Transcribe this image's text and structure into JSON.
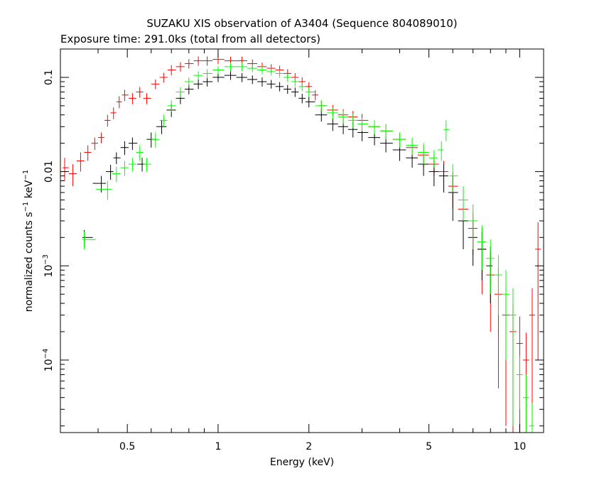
{
  "chart_data": {
    "type": "scatter",
    "title": "SUZAKU XIS observation of A3404 (Sequence 804089010)",
    "subtitle": "Exposure time: 291.0ks (total from all detectors)",
    "xlabel": "Energy (keV)",
    "ylabel_prefix": "normalized counts s",
    "ylabel_exp": "−1",
    "ylabel_mid": " keV",
    "ylabel_exp2": "−1",
    "x_scale": "log",
    "y_scale": "log",
    "xlim": [
      0.3,
      12
    ],
    "ylim": [
      1.7e-05,
      0.2
    ],
    "grid": false,
    "legend": "none",
    "x_ticks": [
      {
        "value": 0.5,
        "label": "0.5"
      },
      {
        "value": 1,
        "label": "1"
      },
      {
        "value": 2,
        "label": "2"
      },
      {
        "value": 5,
        "label": "5"
      },
      {
        "value": 10,
        "label": "10"
      }
    ],
    "y_ticks": [
      {
        "value": 0.1,
        "label": "0.1"
      },
      {
        "value": 0.01,
        "label": "0.01"
      },
      {
        "value": 0.001,
        "label": "10",
        "exp": "−3"
      },
      {
        "value": 0.0001,
        "label": "10",
        "exp": "−4"
      }
    ],
    "series": [
      {
        "color": "#ff0000",
        "points": [
          [
            0.31,
            0.011,
            0.003
          ],
          [
            0.33,
            0.0095,
            0.0025
          ],
          [
            0.35,
            0.013,
            0.003
          ],
          [
            0.37,
            0.016,
            0.003
          ],
          [
            0.39,
            0.02,
            0.003
          ],
          [
            0.41,
            0.023,
            0.003
          ],
          [
            0.43,
            0.035,
            0.005
          ],
          [
            0.45,
            0.042,
            0.006
          ],
          [
            0.47,
            0.055,
            0.008
          ],
          [
            0.49,
            0.065,
            0.009
          ],
          [
            0.52,
            0.06,
            0.008
          ],
          [
            0.55,
            0.07,
            0.009
          ],
          [
            0.58,
            0.06,
            0.008
          ],
          [
            0.62,
            0.085,
            0.01
          ],
          [
            0.66,
            0.1,
            0.012
          ],
          [
            0.7,
            0.12,
            0.015
          ],
          [
            0.75,
            0.13,
            0.015
          ],
          [
            0.8,
            0.14,
            0.016
          ],
          [
            0.86,
            0.15,
            0.017
          ],
          [
            0.92,
            0.15,
            0.017
          ],
          [
            1.0,
            0.155,
            0.017
          ],
          [
            1.1,
            0.15,
            0.016
          ],
          [
            1.2,
            0.15,
            0.016
          ],
          [
            1.3,
            0.14,
            0.015
          ],
          [
            1.4,
            0.13,
            0.014
          ],
          [
            1.5,
            0.125,
            0.013
          ],
          [
            1.6,
            0.12,
            0.013
          ],
          [
            1.7,
            0.11,
            0.012
          ],
          [
            1.8,
            0.1,
            0.011
          ],
          [
            1.9,
            0.09,
            0.01
          ],
          [
            2.0,
            0.08,
            0.009
          ],
          [
            2.1,
            0.065,
            0.008
          ],
          [
            2.2,
            0.05,
            0.007
          ],
          [
            2.4,
            0.045,
            0.006
          ],
          [
            2.6,
            0.04,
            0.006
          ],
          [
            2.8,
            0.038,
            0.006
          ],
          [
            3.0,
            0.035,
            0.006
          ],
          [
            3.3,
            0.03,
            0.005
          ],
          [
            3.6,
            0.027,
            0.005
          ],
          [
            4.0,
            0.022,
            0.004
          ],
          [
            4.4,
            0.018,
            0.004
          ],
          [
            4.8,
            0.015,
            0.004
          ],
          [
            5.2,
            0.012,
            0.003
          ],
          [
            5.6,
            0.01,
            0.003
          ],
          [
            6.0,
            0.007,
            0.003
          ],
          [
            6.5,
            0.004,
            0.002
          ],
          [
            7.0,
            0.0025,
            0.0012
          ],
          [
            7.5,
            0.0015,
            0.001
          ],
          [
            8.0,
            0.0008,
            0.0006
          ],
          [
            8.5,
            0.0005,
            0.00045
          ],
          [
            9.0,
            0.0003,
            0.00028
          ],
          [
            9.5,
            0.0002,
            0.00019
          ],
          [
            10.0,
            0.00015,
            0.00014
          ],
          [
            10.5,
            0.0001,
            9.5e-05
          ],
          [
            11.0,
            0.0003,
            0.00028
          ],
          [
            11.5,
            0.0015,
            0.0014
          ],
          [
            12.0,
            0.004,
            0.0035
          ]
        ]
      },
      {
        "color": "#000000",
        "points": [
          [
            0.36,
            0.002,
            0.0004
          ],
          [
            0.41,
            0.0075,
            0.0015
          ],
          [
            0.44,
            0.01,
            0.0018
          ],
          [
            0.46,
            0.014,
            0.002
          ],
          [
            0.49,
            0.018,
            0.003
          ],
          [
            0.52,
            0.02,
            0.003
          ],
          [
            0.56,
            0.012,
            0.002
          ],
          [
            0.6,
            0.022,
            0.004
          ],
          [
            0.65,
            0.03,
            0.005
          ],
          [
            0.7,
            0.045,
            0.007
          ],
          [
            0.75,
            0.06,
            0.008
          ],
          [
            0.8,
            0.075,
            0.009
          ],
          [
            0.86,
            0.085,
            0.01
          ],
          [
            0.92,
            0.09,
            0.01
          ],
          [
            1.0,
            0.1,
            0.011
          ],
          [
            1.1,
            0.105,
            0.011
          ],
          [
            1.2,
            0.1,
            0.011
          ],
          [
            1.3,
            0.095,
            0.01
          ],
          [
            1.4,
            0.09,
            0.01
          ],
          [
            1.5,
            0.085,
            0.009
          ],
          [
            1.6,
            0.08,
            0.009
          ],
          [
            1.7,
            0.075,
            0.008
          ],
          [
            1.8,
            0.07,
            0.008
          ],
          [
            1.9,
            0.06,
            0.007
          ],
          [
            2.0,
            0.055,
            0.007
          ],
          [
            2.2,
            0.04,
            0.006
          ],
          [
            2.4,
            0.032,
            0.005
          ],
          [
            2.6,
            0.03,
            0.005
          ],
          [
            2.8,
            0.028,
            0.005
          ],
          [
            3.0,
            0.026,
            0.005
          ],
          [
            3.3,
            0.023,
            0.004
          ],
          [
            3.6,
            0.02,
            0.004
          ],
          [
            4.0,
            0.017,
            0.004
          ],
          [
            4.4,
            0.014,
            0.003
          ],
          [
            4.8,
            0.012,
            0.003
          ],
          [
            5.2,
            0.01,
            0.003
          ],
          [
            5.6,
            0.009,
            0.003
          ],
          [
            6.0,
            0.006,
            0.003
          ],
          [
            6.5,
            0.003,
            0.0015
          ],
          [
            7.0,
            0.002,
            0.001
          ],
          [
            7.5,
            0.0015,
            0.0008
          ],
          [
            8.0,
            0.001,
            0.0006
          ]
        ]
      },
      {
        "color": "#00ff00",
        "points": [
          [
            0.36,
            0.0019,
            0.0004
          ],
          [
            0.43,
            0.0065,
            0.0015
          ],
          [
            0.46,
            0.0095,
            0.0018
          ],
          [
            0.49,
            0.011,
            0.002
          ],
          [
            0.52,
            0.012,
            0.002
          ],
          [
            0.55,
            0.016,
            0.003
          ],
          [
            0.58,
            0.012,
            0.002
          ],
          [
            0.62,
            0.022,
            0.004
          ],
          [
            0.66,
            0.035,
            0.005
          ],
          [
            0.7,
            0.05,
            0.007
          ],
          [
            0.75,
            0.07,
            0.009
          ],
          [
            0.8,
            0.09,
            0.01
          ],
          [
            0.86,
            0.105,
            0.011
          ],
          [
            0.92,
            0.11,
            0.012
          ],
          [
            1.0,
            0.12,
            0.012
          ],
          [
            1.1,
            0.13,
            0.013
          ],
          [
            1.2,
            0.13,
            0.013
          ],
          [
            1.3,
            0.125,
            0.012
          ],
          [
            1.4,
            0.12,
            0.012
          ],
          [
            1.5,
            0.115,
            0.011
          ],
          [
            1.6,
            0.11,
            0.011
          ],
          [
            1.7,
            0.1,
            0.01
          ],
          [
            1.8,
            0.09,
            0.01
          ],
          [
            1.9,
            0.08,
            0.009
          ],
          [
            2.0,
            0.07,
            0.008
          ],
          [
            2.2,
            0.05,
            0.007
          ],
          [
            2.4,
            0.042,
            0.006
          ],
          [
            2.6,
            0.038,
            0.006
          ],
          [
            2.8,
            0.035,
            0.006
          ],
          [
            3.0,
            0.032,
            0.005
          ],
          [
            3.3,
            0.03,
            0.005
          ],
          [
            3.6,
            0.027,
            0.005
          ],
          [
            4.0,
            0.022,
            0.004
          ],
          [
            4.4,
            0.019,
            0.004
          ],
          [
            4.8,
            0.016,
            0.004
          ],
          [
            5.2,
            0.014,
            0.003
          ],
          [
            5.5,
            0.017,
            0.004
          ],
          [
            5.7,
            0.028,
            0.007
          ],
          [
            6.0,
            0.009,
            0.003
          ],
          [
            6.5,
            0.005,
            0.002
          ],
          [
            7.0,
            0.003,
            0.0015
          ],
          [
            7.5,
            0.0018,
            0.0009
          ],
          [
            8.0,
            0.0012,
            0.0007
          ],
          [
            8.5,
            0.0008,
            0.0005
          ],
          [
            9.0,
            0.0005,
            0.0004
          ],
          [
            9.5,
            0.0003,
            0.00028
          ],
          [
            10.0,
            7e-05,
            4e-05
          ],
          [
            10.5,
            4e-05,
            3e-05
          ],
          [
            11.0,
            2e-05,
            1.5e-05
          ]
        ]
      }
    ]
  }
}
